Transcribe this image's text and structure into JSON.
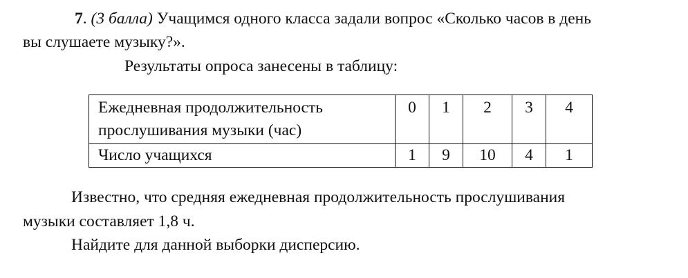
{
  "problem": {
    "number": "7",
    "points": "(3 балла)",
    "intro_1": "Учащимся одного класса задали вопрос «Сколько часов в день",
    "intro_2": "вы слушаете музыку?».",
    "intro_3": "Результаты опроса занесены в таблицу:",
    "after_1": "Известно, что средняя ежедневная продолжительность прослушивания",
    "after_2": "музыки составляет 1,8 ч.",
    "question": "Найдите для данной выборки дисперсию."
  },
  "table": {
    "row1_label_1": "Ежедневная продолжительность",
    "row1_label_2": "прослушивания музыки (час)",
    "hours": [
      "0",
      "1",
      "2",
      "3",
      "4"
    ],
    "row2_label": "Число учащихся",
    "counts": [
      "1",
      "9",
      "10",
      "4",
      "1"
    ]
  }
}
